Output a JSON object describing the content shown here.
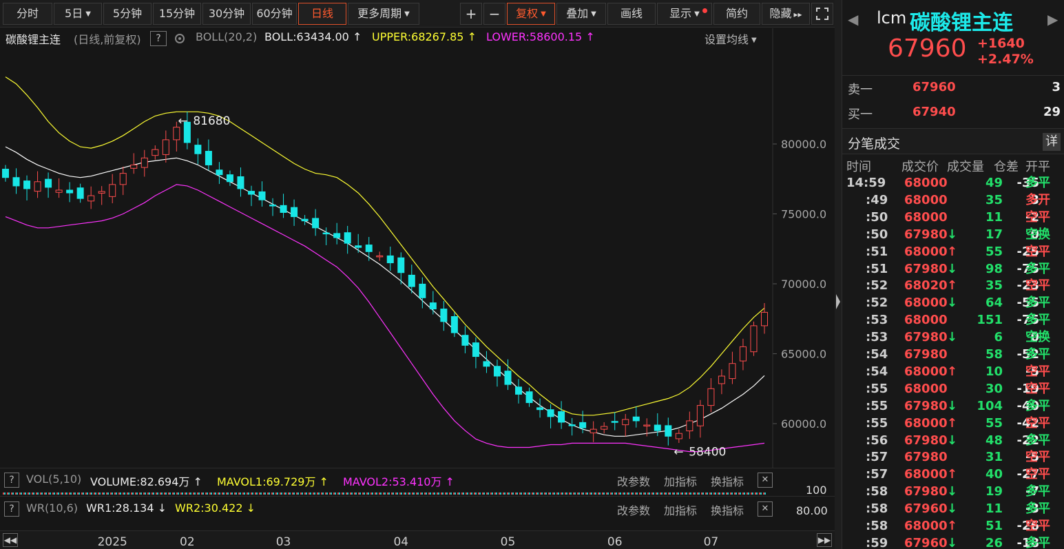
{
  "toolbar": {
    "tabs": [
      "分时",
      "5日",
      "5分钟",
      "15分钟",
      "30分钟",
      "60分钟",
      "日线",
      "更多周期"
    ],
    "active_tab": "日线",
    "plus": "+",
    "minus": "−",
    "fuquan": "复权",
    "overlay": "叠加",
    "draw": "画线",
    "display": "显示",
    "simple": "简约",
    "hide": "隐藏"
  },
  "chart_info": {
    "name": "碳酸锂主连",
    "mode": "(日线,前复权)",
    "help": "?",
    "indicator": "BOLL(20,2)",
    "boll": "BOLL:63434.00 ↑",
    "upper": "UPPER:68267.85 ↑",
    "lower": "LOWER:58600.15 ↑",
    "set_ma": "设置均线"
  },
  "annotations": {
    "high": "81680",
    "low": "58400"
  },
  "subcharts": [
    {
      "help": "?",
      "name": "VOL(5,10)",
      "v1": "VOLUME:82.694万 ↑",
      "v2": "MAVOL1:69.729万 ↑",
      "v3": "MAVOL2:53.410万 ↑",
      "axis": "100",
      "btn1": "改参数",
      "btn2": "加指标",
      "btn3": "换指标",
      "close": "✕"
    },
    {
      "help": "?",
      "name": "WR(10,6)",
      "v1": "WR1:28.134 ↓",
      "v2": "WR2:30.422 ↓",
      "axis": "80.00",
      "btn1": "改参数",
      "btn2": "加指标",
      "btn3": "换指标",
      "close": "✕"
    }
  ],
  "colors": {
    "up": "#ff4d4d",
    "down": "#18e6e6",
    "boll": "#ffffff",
    "upper": "#ffff33",
    "lower": "#ff33ff"
  },
  "chart_data": {
    "type": "candlestick",
    "title": "碳酸锂主连",
    "y_ticks": [
      80000,
      75000,
      70000,
      65000,
      60000
    ],
    "y_tick_labels": [
      "80000.0",
      "75000.0",
      "70000.0",
      "65000.0",
      "60000.0"
    ],
    "ylim": [
      57000,
      85000
    ],
    "x_tick_labels": [
      "2025",
      "02",
      "03",
      "04",
      "05",
      "06",
      "07"
    ],
    "x_tick_index": [
      10,
      17,
      26,
      37,
      47,
      57,
      66
    ],
    "n_days": 72,
    "close": [
      77600,
      77000,
      76800,
      77300,
      76900,
      76700,
      76500,
      76100,
      76300,
      76600,
      77100,
      77900,
      78500,
      79000,
      79600,
      80300,
      81200,
      80100,
      79300,
      78500,
      77800,
      77300,
      76800,
      76400,
      76000,
      75600,
      75100,
      74800,
      74500,
      74000,
      73600,
      73300,
      72900,
      72600,
      72300,
      72000,
      71500,
      70800,
      69800,
      69000,
      68200,
      67300,
      66500,
      65600,
      64800,
      64100,
      63400,
      62800,
      62100,
      61500,
      61000,
      60500,
      60100,
      59900,
      59700,
      59600,
      59800,
      60100,
      60300,
      60200,
      59900,
      59500,
      59100,
      59300,
      60200,
      61300,
      62500,
      63400,
      64300,
      65500,
      67000,
      67960
    ],
    "boll": [
      79800,
      79400,
      78900,
      78500,
      78200,
      77900,
      77700,
      77600,
      77700,
      77900,
      78100,
      78300,
      78500,
      78700,
      78800,
      78900,
      79000,
      78800,
      78500,
      78100,
      77700,
      77300,
      76900,
      76500,
      76100,
      75700,
      75300,
      74900,
      74500,
      74100,
      73700,
      73300,
      72900,
      72400,
      71900,
      71400,
      70800,
      70200,
      69500,
      68800,
      68100,
      67400,
      66700,
      66000,
      65300,
      64600,
      63900,
      63200,
      62500,
      61900,
      61300,
      60800,
      60300,
      59900,
      59600,
      59400,
      59200,
      59100,
      59100,
      59200,
      59300,
      59400,
      59500,
      59700,
      60000,
      60300,
      60700,
      61100,
      61600,
      62100,
      62700,
      63434
    ],
    "upper": [
      84800,
      84300,
      83500,
      82600,
      81600,
      80800,
      80200,
      79800,
      79700,
      79900,
      80200,
      80600,
      81100,
      81600,
      82000,
      82200,
      82300,
      82300,
      82300,
      82200,
      82000,
      81600,
      81100,
      80600,
      80100,
      79600,
      79100,
      78600,
      78200,
      77900,
      77800,
      77600,
      77100,
      76500,
      75700,
      74800,
      73800,
      72800,
      71800,
      70800,
      69800,
      68900,
      68000,
      67100,
      66300,
      65500,
      64800,
      64100,
      63400,
      62800,
      62100,
      61500,
      61000,
      60700,
      60600,
      60600,
      60700,
      60800,
      61000,
      61200,
      61400,
      61600,
      61800,
      62100,
      62600,
      63300,
      64100,
      65000,
      65900,
      66800,
      67600,
      68268
    ],
    "lower": [
      74800,
      74500,
      74200,
      74000,
      74000,
      74100,
      74200,
      74300,
      74400,
      74500,
      74700,
      75000,
      75400,
      75800,
      76300,
      76700,
      77100,
      77000,
      76700,
      76300,
      75900,
      75500,
      75100,
      74700,
      74300,
      73900,
      73500,
      73100,
      72700,
      72200,
      71700,
      71200,
      70500,
      69700,
      68700,
      67600,
      66500,
      65400,
      64300,
      63200,
      62100,
      61100,
      60200,
      59500,
      58900,
      58600,
      58400,
      58300,
      58300,
      58300,
      58400,
      58500,
      58500,
      58600,
      58600,
      58600,
      58600,
      58600,
      58600,
      58500,
      58400,
      58300,
      58200,
      58100,
      58000,
      58000,
      58100,
      58200,
      58300,
      58400,
      58500,
      58600
    ]
  },
  "quote": {
    "symbol": "lcm",
    "name": "碳酸锂主连",
    "price": "67960",
    "change": "+1640",
    "pct": "+2.47%",
    "sell_label": "卖一",
    "sell_price": "67960",
    "sell_vol": "3",
    "buy_label": "买一",
    "buy_price": "67940",
    "buy_vol": "29",
    "ticks_title": "分笔成交",
    "detail_btn": "详",
    "headers": [
      "时间",
      "成交价",
      "成交量",
      "仓差",
      "开平"
    ]
  },
  "ticks": [
    {
      "t": "14:59",
      "p": "68000",
      "a": "",
      "v": "49",
      "d": "-35",
      "k": "多平",
      "pc": "up",
      "kc": "dn"
    },
    {
      "t": ":49",
      "p": "68000",
      "a": "",
      "v": "35",
      "d": "3",
      "k": "多开",
      "pc": "up",
      "kc": "up"
    },
    {
      "t": ":50",
      "p": "68000",
      "a": "",
      "v": "11",
      "d": "-2",
      "k": "空平",
      "pc": "up",
      "kc": "up"
    },
    {
      "t": ":50",
      "p": "67980",
      "a": "↓",
      "v": "17",
      "d": "0",
      "k": "空换",
      "pc": "up",
      "kc": "dn"
    },
    {
      "t": ":51",
      "p": "68000",
      "a": "↑",
      "v": "55",
      "d": "-25",
      "k": "空平",
      "pc": "up",
      "kc": "up"
    },
    {
      "t": ":51",
      "p": "67980",
      "a": "↓",
      "v": "98",
      "d": "-75",
      "k": "多平",
      "pc": "up",
      "kc": "dn"
    },
    {
      "t": ":52",
      "p": "68020",
      "a": "↑",
      "v": "35",
      "d": "-23",
      "k": "空平",
      "pc": "up",
      "kc": "up"
    },
    {
      "t": ":52",
      "p": "68000",
      "a": "↓",
      "v": "64",
      "d": "-55",
      "k": "多平",
      "pc": "up",
      "kc": "dn"
    },
    {
      "t": ":53",
      "p": "68000",
      "a": "",
      "v": "151",
      "d": "-75",
      "k": "多平",
      "pc": "up",
      "kc": "dn"
    },
    {
      "t": ":53",
      "p": "67980",
      "a": "↓",
      "v": "6",
      "d": "0",
      "k": "空换",
      "pc": "up",
      "kc": "dn"
    },
    {
      "t": ":54",
      "p": "67980",
      "a": "",
      "v": "58",
      "d": "-52",
      "k": "多平",
      "pc": "up",
      "kc": "dn"
    },
    {
      "t": ":54",
      "p": "68000",
      "a": "↑",
      "v": "10",
      "d": "-5",
      "k": "空平",
      "pc": "up",
      "kc": "up"
    },
    {
      "t": ":55",
      "p": "68000",
      "a": "",
      "v": "30",
      "d": "-19",
      "k": "空平",
      "pc": "up",
      "kc": "up"
    },
    {
      "t": ":55",
      "p": "67980",
      "a": "↓",
      "v": "104",
      "d": "-40",
      "k": "多平",
      "pc": "up",
      "kc": "dn"
    },
    {
      "t": ":55",
      "p": "68000",
      "a": "↑",
      "v": "55",
      "d": "-42",
      "k": "空平",
      "pc": "up",
      "kc": "up"
    },
    {
      "t": ":56",
      "p": "67980",
      "a": "↓",
      "v": "48",
      "d": "-22",
      "k": "多平",
      "pc": "up",
      "kc": "dn"
    },
    {
      "t": ":57",
      "p": "67980",
      "a": "",
      "v": "31",
      "d": "-5",
      "k": "空平",
      "pc": "up",
      "kc": "up"
    },
    {
      "t": ":57",
      "p": "68000",
      "a": "↑",
      "v": "40",
      "d": "-27",
      "k": "空平",
      "pc": "up",
      "kc": "up"
    },
    {
      "t": ":58",
      "p": "67980",
      "a": "↓",
      "v": "19",
      "d": "-7",
      "k": "多平",
      "pc": "up",
      "kc": "dn"
    },
    {
      "t": ":58",
      "p": "67960",
      "a": "↓",
      "v": "11",
      "d": "-3",
      "k": "多平",
      "pc": "up",
      "kc": "dn"
    },
    {
      "t": ":58",
      "p": "68000",
      "a": "↑",
      "v": "51",
      "d": "-26",
      "k": "空平",
      "pc": "up",
      "kc": "up"
    },
    {
      "t": ":59",
      "p": "67960",
      "a": "↓",
      "v": "26",
      "d": "-18",
      "k": "多平",
      "pc": "up",
      "kc": "dn"
    }
  ]
}
